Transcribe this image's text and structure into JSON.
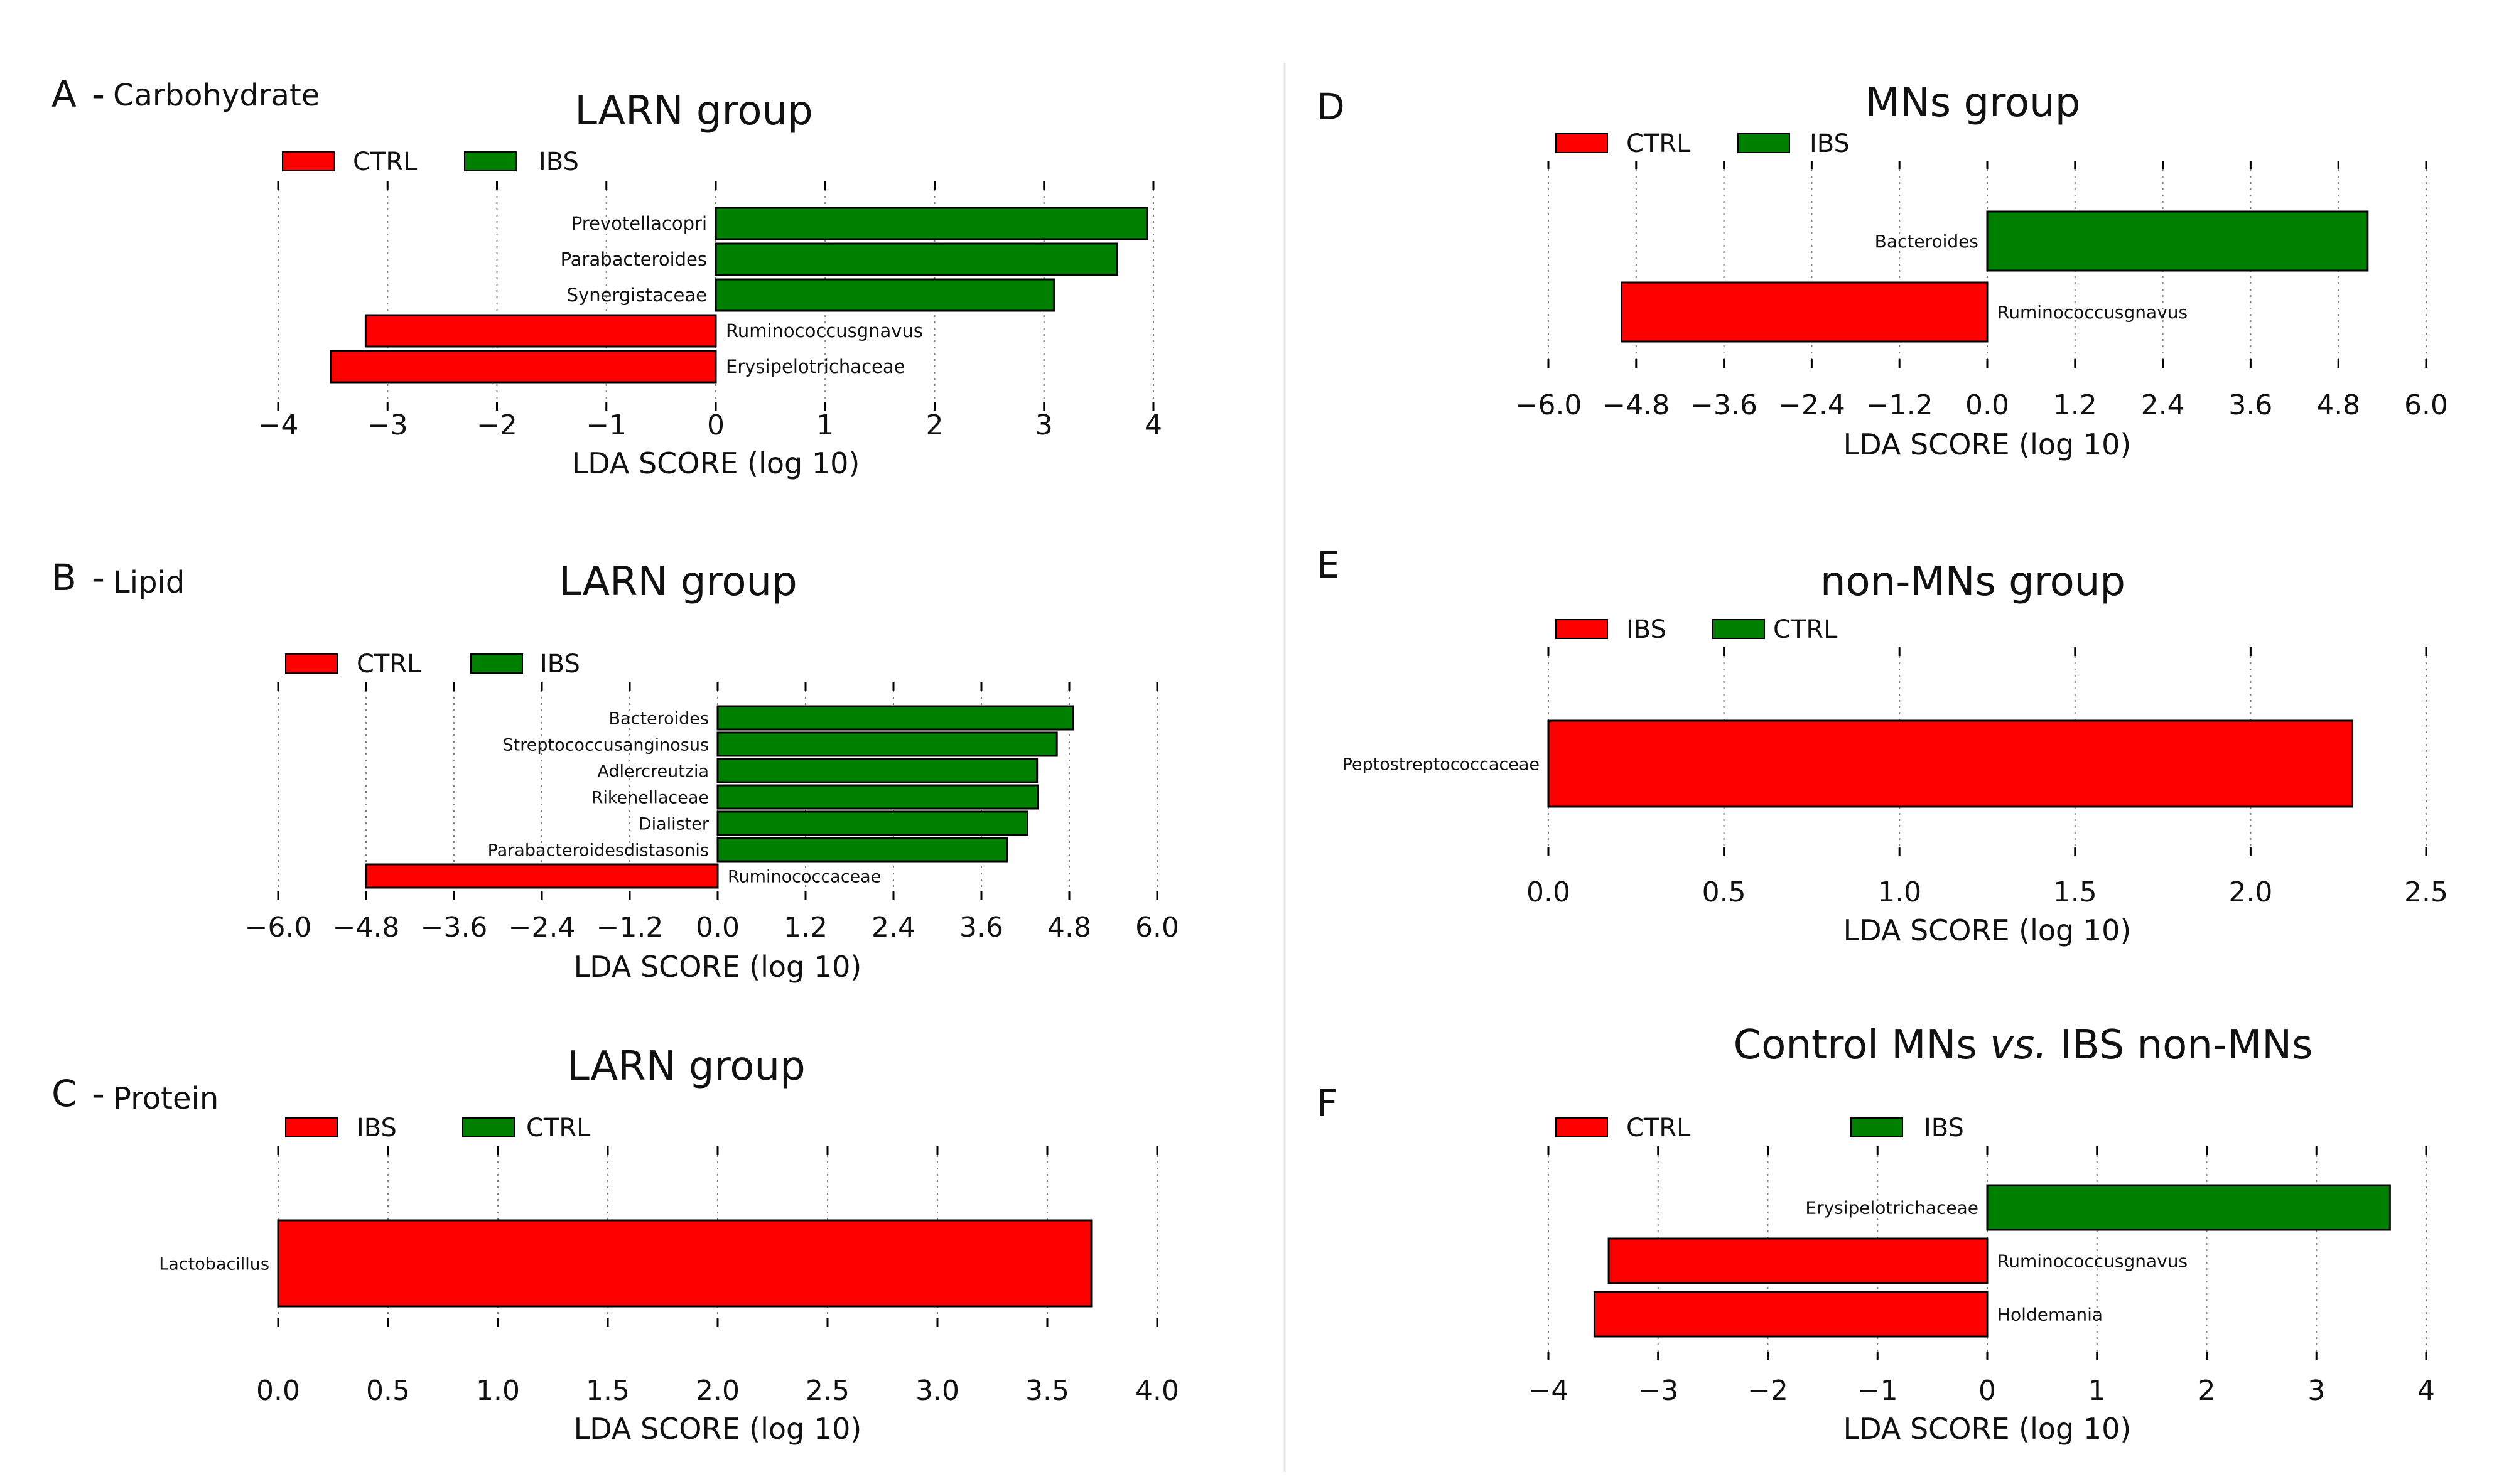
{
  "colors": {
    "ctrl": "#ff0000",
    "ibs": "#008000",
    "grid": "#808080",
    "axis": "#000000",
    "divider": "#e6e6e6"
  },
  "chart_data": [
    {
      "panel_letter": "A",
      "panel_label": "Carbohydrate",
      "title": "LARN group",
      "type": "bar",
      "orientation": "horizontal",
      "legend": [
        {
          "name": "CTRL",
          "color": "#ff0000"
        },
        {
          "name": "IBS",
          "color": "#008000"
        }
      ],
      "xlabel": "LDA SCORE (log 10)",
      "xlim": [
        -4,
        4
      ],
      "ticks": [
        -4,
        -3,
        -2,
        -1,
        0,
        1,
        2,
        3,
        4
      ],
      "tick_labels": [
        "−4",
        "−3",
        "−2",
        "−1",
        "0",
        "1",
        "2",
        "3",
        "4"
      ],
      "grid": true,
      "bars": [
        {
          "label": "Prevotellacopri",
          "value": 3.94,
          "group": "IBS",
          "color": "#008000"
        },
        {
          "label": "Parabacteroides",
          "value": 3.67,
          "group": "IBS",
          "color": "#008000"
        },
        {
          "label": "Synergistaceae",
          "value": 3.09,
          "group": "IBS",
          "color": "#008000"
        },
        {
          "label": "Ruminococcusgnavus",
          "value": -3.2,
          "group": "CTRL",
          "color": "#ff0000"
        },
        {
          "label": "Erysipelotrichaceae",
          "value": -3.52,
          "group": "CTRL",
          "color": "#ff0000"
        }
      ]
    },
    {
      "panel_letter": "B",
      "panel_label": "Lipid",
      "title": "LARN group",
      "type": "bar",
      "orientation": "horizontal",
      "legend": [
        {
          "name": "CTRL",
          "color": "#ff0000"
        },
        {
          "name": "IBS",
          "color": "#008000"
        }
      ],
      "xlabel": "LDA SCORE (log 10)",
      "xlim": [
        -6,
        6
      ],
      "ticks": [
        -6,
        -4.8,
        -3.6,
        -2.4,
        -1.2,
        0,
        1.2,
        2.4,
        3.6,
        4.8,
        6
      ],
      "tick_labels": [
        "−6.0",
        "−4.8",
        "−3.6",
        "−2.4",
        "−1.2",
        "0.0",
        "1.2",
        "2.4",
        "3.6",
        "4.8",
        "6.0"
      ],
      "grid": true,
      "bars": [
        {
          "label": "Bacteroides",
          "value": 4.85,
          "group": "IBS",
          "color": "#008000"
        },
        {
          "label": "Streptococcusanginosus",
          "value": 4.63,
          "group": "IBS",
          "color": "#008000"
        },
        {
          "label": "Adlercreutzia",
          "value": 4.36,
          "group": "IBS",
          "color": "#008000"
        },
        {
          "label": "Rikenellaceae",
          "value": 4.37,
          "group": "IBS",
          "color": "#008000"
        },
        {
          "label": "Dialister",
          "value": 4.23,
          "group": "IBS",
          "color": "#008000"
        },
        {
          "label": "Parabacteroidesdistasonis",
          "value": 3.95,
          "group": "IBS",
          "color": "#008000"
        },
        {
          "label": "Ruminococcaceae",
          "value": -4.8,
          "group": "CTRL",
          "color": "#ff0000"
        }
      ]
    },
    {
      "panel_letter": "C",
      "panel_label": "Protein",
      "title": "LARN group",
      "type": "bar",
      "orientation": "horizontal",
      "legend": [
        {
          "name": "IBS",
          "color": "#ff0000"
        },
        {
          "name": "CTRL",
          "color": "#008000"
        }
      ],
      "xlabel": "LDA SCORE (log 10)",
      "xlim": [
        0,
        4
      ],
      "ticks": [
        0,
        0.5,
        1,
        1.5,
        2,
        2.5,
        3,
        3.5,
        4
      ],
      "tick_labels": [
        "0.0",
        "0.5",
        "1.0",
        "1.5",
        "2.0",
        "2.5",
        "3.0",
        "3.5",
        "4.0"
      ],
      "grid": true,
      "bars": [
        {
          "label": "Lactobacillus",
          "value": 3.7,
          "group": "IBS",
          "color": "#ff0000"
        }
      ]
    },
    {
      "panel_letter": "D",
      "panel_label": "",
      "title": "MNs group",
      "type": "bar",
      "orientation": "horizontal",
      "legend": [
        {
          "name": "CTRL",
          "color": "#ff0000"
        },
        {
          "name": "IBS",
          "color": "#008000"
        }
      ],
      "xlabel": "LDA SCORE (log 10)",
      "xlim": [
        -6,
        6
      ],
      "ticks": [
        -6,
        -4.8,
        -3.6,
        -2.4,
        -1.2,
        0,
        1.2,
        2.4,
        3.6,
        4.8,
        6
      ],
      "tick_labels": [
        "−6.0",
        "−4.8",
        "−3.6",
        "−2.4",
        "−1.2",
        "0.0",
        "1.2",
        "2.4",
        "3.6",
        "4.8",
        "6.0"
      ],
      "grid": true,
      "bars": [
        {
          "label": "Bacteroides",
          "value": 5.2,
          "group": "IBS",
          "color": "#008000"
        },
        {
          "label": "Ruminococcusgnavus",
          "value": -5.0,
          "group": "CTRL",
          "color": "#ff0000"
        }
      ]
    },
    {
      "panel_letter": "E",
      "panel_label": "",
      "title": "non-MNs group",
      "type": "bar",
      "orientation": "horizontal",
      "legend": [
        {
          "name": "IBS",
          "color": "#ff0000"
        },
        {
          "name": "CTRL",
          "color": "#008000"
        }
      ],
      "xlabel": "LDA SCORE (log 10)",
      "xlim": [
        0,
        2.5
      ],
      "ticks": [
        0,
        0.5,
        1,
        1.5,
        2,
        2.5
      ],
      "tick_labels": [
        "0.0",
        "0.5",
        "1.0",
        "1.5",
        "2.0",
        "2.5"
      ],
      "grid": true,
      "bars": [
        {
          "label": "Peptostreptococcaceae",
          "value": 2.29,
          "group": "IBS",
          "color": "#ff0000"
        }
      ]
    },
    {
      "panel_letter": "F",
      "panel_label": "",
      "title_parts": [
        "Control MNs ",
        "vs.",
        " IBS non-MNs"
      ],
      "type": "bar",
      "orientation": "horizontal",
      "legend": [
        {
          "name": "CTRL",
          "color": "#ff0000"
        },
        {
          "name": "IBS",
          "color": "#008000"
        }
      ],
      "xlabel": "LDA SCORE (log 10)",
      "xlim": [
        -4,
        4
      ],
      "ticks": [
        -4,
        -3,
        -2,
        -1,
        0,
        1,
        2,
        3,
        4
      ],
      "tick_labels": [
        "−4",
        "−3",
        "−2",
        "−1",
        "0",
        "1",
        "2",
        "3",
        "4"
      ],
      "grid": true,
      "bars": [
        {
          "label": "Erysipelotrichaceae",
          "value": 3.67,
          "group": "IBS",
          "color": "#008000"
        },
        {
          "label": "Ruminococcusgnavus",
          "value": -3.45,
          "group": "CTRL",
          "color": "#ff0000"
        },
        {
          "label": "Holdemania",
          "value": -3.58,
          "group": "CTRL",
          "color": "#ff0000"
        }
      ]
    }
  ]
}
